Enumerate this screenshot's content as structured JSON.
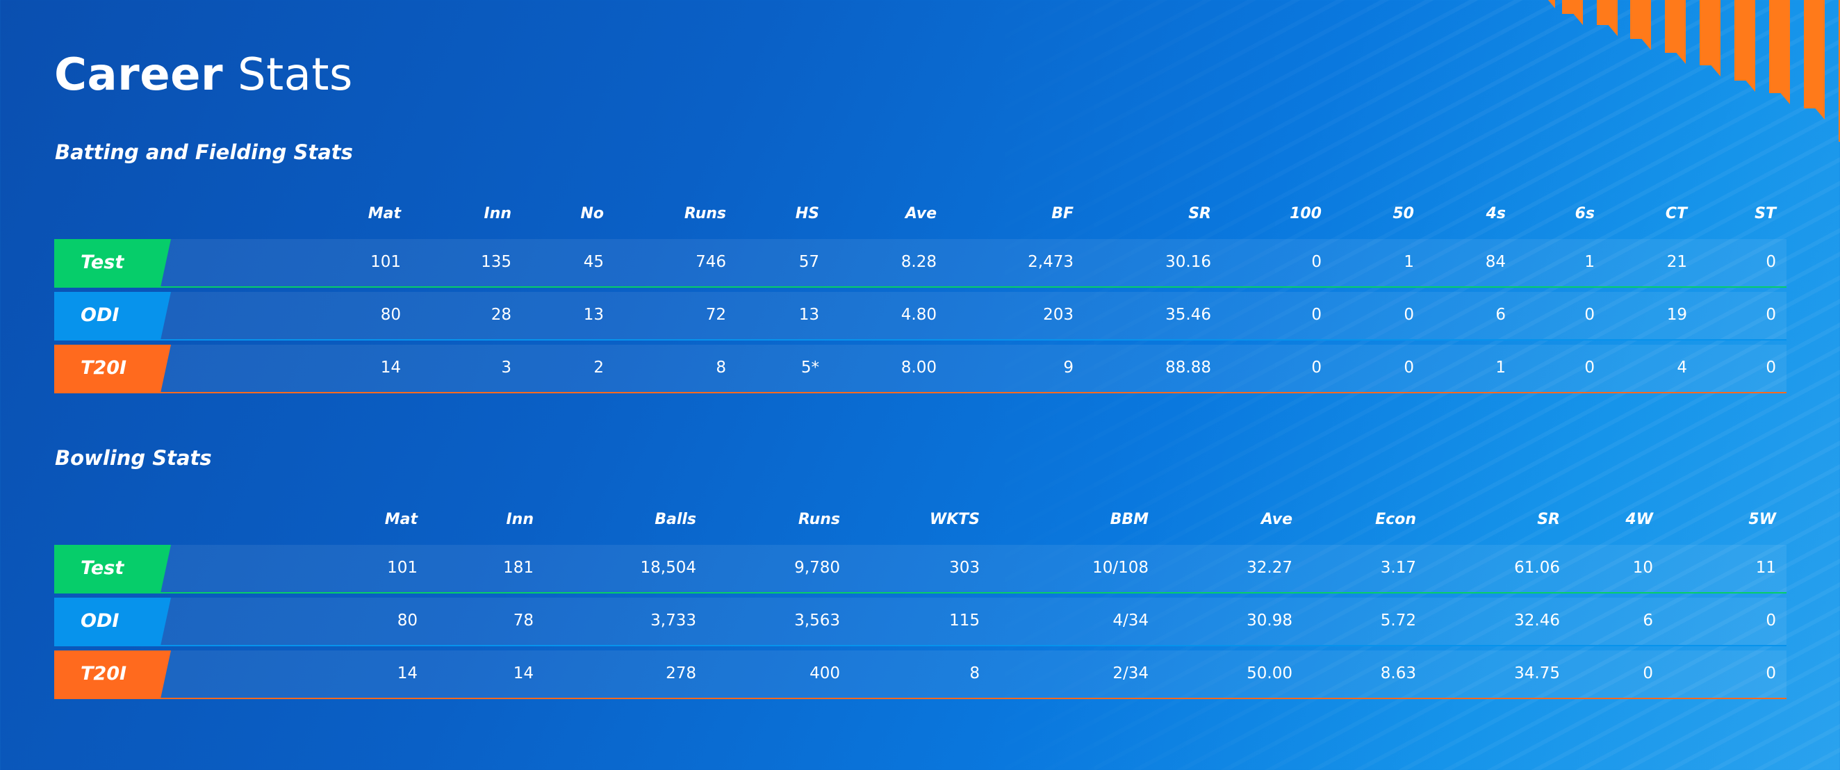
{
  "page": {
    "title_bold": "Career",
    "title_light": "Stats"
  },
  "colors": {
    "test": "#06cd6a",
    "odi": "#0793ec",
    "t20i": "#ff6a1e",
    "accent": "#ff7a1a"
  },
  "batting": {
    "title": "Batting and Fielding Stats",
    "headers": [
      "Mat",
      "Inn",
      "No",
      "Runs",
      "HS",
      "Ave",
      "BF",
      "SR",
      "100",
      "50",
      "4s",
      "6s",
      "CT",
      "ST"
    ],
    "rows": [
      {
        "format": "Test",
        "values": [
          "101",
          "135",
          "45",
          "746",
          "57",
          "8.28",
          "2,473",
          "30.16",
          "0",
          "1",
          "84",
          "1",
          "21",
          "0"
        ]
      },
      {
        "format": "ODI",
        "values": [
          "80",
          "28",
          "13",
          "72",
          "13",
          "4.80",
          "203",
          "35.46",
          "0",
          "0",
          "6",
          "0",
          "19",
          "0"
        ]
      },
      {
        "format": "T20I",
        "values": [
          "14",
          "3",
          "2",
          "8",
          "5*",
          "8.00",
          "9",
          "88.88",
          "0",
          "0",
          "1",
          "0",
          "4",
          "0"
        ]
      }
    ]
  },
  "bowling": {
    "title": "Bowling Stats",
    "headers": [
      "Mat",
      "Inn",
      "Balls",
      "Runs",
      "WKTS",
      "BBM",
      "Ave",
      "Econ",
      "SR",
      "4W",
      "5W"
    ],
    "rows": [
      {
        "format": "Test",
        "values": [
          "101",
          "181",
          "18,504",
          "9,780",
          "303",
          "10/108",
          "32.27",
          "3.17",
          "61.06",
          "10",
          "11"
        ]
      },
      {
        "format": "ODI",
        "values": [
          "80",
          "78",
          "3,733",
          "3,563",
          "115",
          "4/34",
          "30.98",
          "5.72",
          "32.46",
          "6",
          "0"
        ]
      },
      {
        "format": "T20I",
        "values": [
          "14",
          "14",
          "278",
          "400",
          "8",
          "2/34",
          "50.00",
          "8.63",
          "34.75",
          "0",
          "0"
        ]
      }
    ]
  }
}
